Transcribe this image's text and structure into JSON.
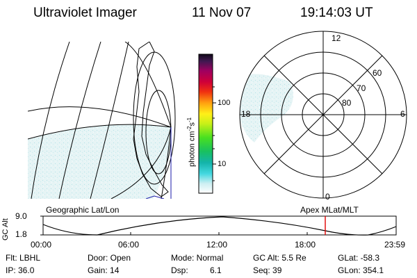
{
  "header": {
    "title": "Ultraviolet Imager",
    "date": "11 Nov 07",
    "time": "19:14:03 UT"
  },
  "colorbar": {
    "unit_text": "photon cm",
    "unit_exp1": "-2",
    "unit_s": "s",
    "unit_exp2": "-1",
    "tick_100": "100",
    "tick_10": "10"
  },
  "polar": {
    "label_top": "12",
    "label_bottom": "0",
    "label_left": "18",
    "label_right": "6",
    "ring_60": "60",
    "ring_70": "70",
    "ring_80": "80"
  },
  "orbit": {
    "left_title": "Geographic Lat/Lon",
    "right_title": "Apex MLat/MLT",
    "ylabel": "GC Alt",
    "y_top": "9.0",
    "y_bottom": "1.8",
    "x_ticks": [
      "00:00",
      "06:00",
      "12:00",
      "18:00",
      "23:59"
    ],
    "marker_color": "#e00000"
  },
  "info": {
    "flt": "Flt: LBHL",
    "ip": "IP: 36.0",
    "door": "Door: Open",
    "gain": "Gain: 14",
    "mode": "Mode: Normal",
    "dsp_label": "Dsp:",
    "dsp_value": "6.1",
    "gcalt": "GC Alt: 5.5 Re",
    "seq": "Seq: 39",
    "glat": "GLat: -58.3",
    "glon": "GLon: 354.1"
  }
}
